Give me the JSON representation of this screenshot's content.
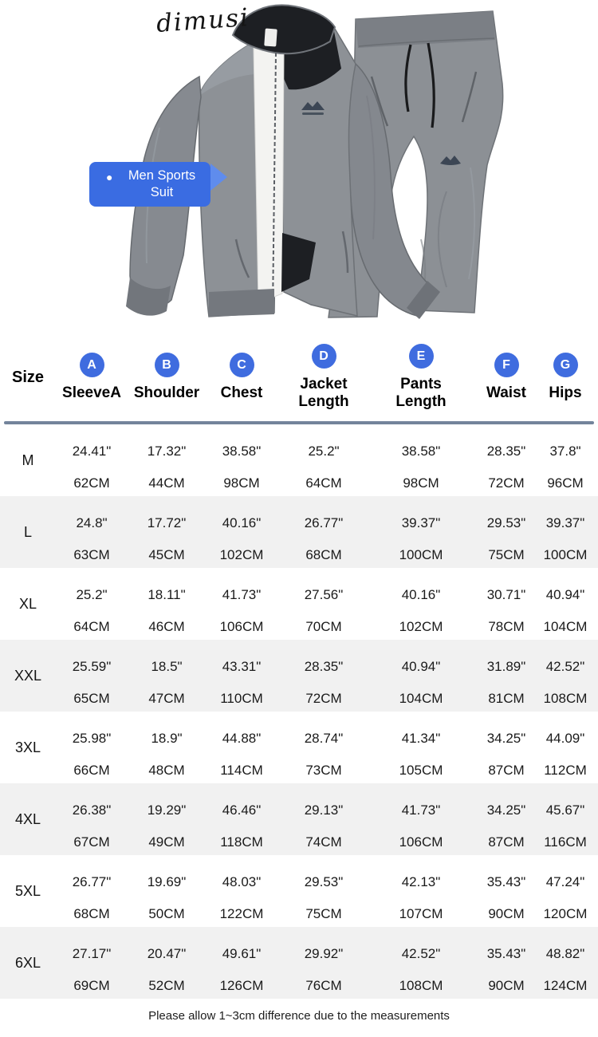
{
  "brand": "dimusi",
  "hero": {
    "callout": {
      "bullet": "●",
      "label": "Men Sports Suit"
    }
  },
  "colors": {
    "badge_blue": "#3f6cdf",
    "callout_blue": "#3a6ce2",
    "callout_arrow_blue": "#5f8ced",
    "header_rule": "#73849b",
    "row_alt_bg": "#f1f1f1",
    "jacket_gray": "#8d9196",
    "collar_black": "#1d1f23",
    "lining_white": "#f3f3f1"
  },
  "table": {
    "size_header": "Size",
    "columns": [
      {
        "badge": "A",
        "label": "SleeveA"
      },
      {
        "badge": "B",
        "label": "Shoulder"
      },
      {
        "badge": "C",
        "label": "Chest"
      },
      {
        "badge": "D",
        "label": "Jacket Length"
      },
      {
        "badge": "E",
        "label": "Pants Length"
      },
      {
        "badge": "F",
        "label": "Waist"
      },
      {
        "badge": "G",
        "label": "Hips"
      }
    ],
    "rows": [
      {
        "size": "M",
        "inch": [
          "24.41\"",
          "17.32\"",
          "38.58\"",
          "25.2\"",
          "38.58\"",
          "28.35\"",
          "37.8\""
        ],
        "cm": [
          "62CM",
          "44CM",
          "98CM",
          "64CM",
          "98CM",
          "72CM",
          "96CM"
        ]
      },
      {
        "size": "L",
        "inch": [
          "24.8\"",
          "17.72\"",
          "40.16\"",
          "26.77\"",
          "39.37\"",
          "29.53\"",
          "39.37\""
        ],
        "cm": [
          "63CM",
          "45CM",
          "102CM",
          "68CM",
          "100CM",
          "75CM",
          "100CM"
        ]
      },
      {
        "size": "XL",
        "inch": [
          "25.2\"",
          "18.11\"",
          "41.73\"",
          "27.56\"",
          "40.16\"",
          "30.71\"",
          "40.94\""
        ],
        "cm": [
          "64CM",
          "46CM",
          "106CM",
          "70CM",
          "102CM",
          "78CM",
          "104CM"
        ]
      },
      {
        "size": "XXL",
        "inch": [
          "25.59\"",
          "18.5\"",
          "43.31\"",
          "28.35\"",
          "40.94\"",
          "31.89\"",
          "42.52\""
        ],
        "cm": [
          "65CM",
          "47CM",
          "110CM",
          "72CM",
          "104CM",
          "81CM",
          "108CM"
        ]
      },
      {
        "size": "3XL",
        "inch": [
          "25.98\"",
          "18.9\"",
          "44.88\"",
          "28.74\"",
          "41.34\"",
          "34.25\"",
          "44.09\""
        ],
        "cm": [
          "66CM",
          "48CM",
          "114CM",
          "73CM",
          "105CM",
          "87CM",
          "112CM"
        ]
      },
      {
        "size": "4XL",
        "inch": [
          "26.38\"",
          "19.29\"",
          "46.46\"",
          "29.13\"",
          "41.73\"",
          "34.25\"",
          "45.67\""
        ],
        "cm": [
          "67CM",
          "49CM",
          "118CM",
          "74CM",
          "106CM",
          "87CM",
          "116CM"
        ]
      },
      {
        "size": "5XL",
        "inch": [
          "26.77\"",
          "19.69\"",
          "48.03\"",
          "29.53\"",
          "42.13\"",
          "35.43\"",
          "47.24\""
        ],
        "cm": [
          "68CM",
          "50CM",
          "122CM",
          "75CM",
          "107CM",
          "90CM",
          "120CM"
        ]
      },
      {
        "size": "6XL",
        "inch": [
          "27.17\"",
          "20.47\"",
          "49.61\"",
          "29.92\"",
          "42.52\"",
          "35.43\"",
          "48.82\""
        ],
        "cm": [
          "69CM",
          "52CM",
          "126CM",
          "76CM",
          "108CM",
          "90CM",
          "124CM"
        ]
      }
    ],
    "footnote": "Please allow 1~3cm difference due to the measurements"
  },
  "chart_data": {
    "type": "table",
    "title": "Men Sports Suit",
    "columns": [
      "Size",
      "SleeveA (A)",
      "Shoulder (B)",
      "Chest (C)",
      "Jacket Length (D)",
      "Pants Length (E)",
      "Waist (F)",
      "Hips (G)"
    ],
    "rows_inches": [
      [
        "M",
        24.41,
        17.32,
        38.58,
        25.2,
        38.58,
        28.35,
        37.8
      ],
      [
        "L",
        24.8,
        17.72,
        40.16,
        26.77,
        39.37,
        29.53,
        39.37
      ],
      [
        "XL",
        25.2,
        18.11,
        41.73,
        27.56,
        40.16,
        30.71,
        40.94
      ],
      [
        "XXL",
        25.59,
        18.5,
        43.31,
        28.35,
        40.94,
        31.89,
        42.52
      ],
      [
        "3XL",
        25.98,
        18.9,
        44.88,
        28.74,
        41.34,
        34.25,
        44.09
      ],
      [
        "4XL",
        26.38,
        19.29,
        46.46,
        29.13,
        41.73,
        34.25,
        45.67
      ],
      [
        "5XL",
        26.77,
        19.69,
        48.03,
        29.53,
        42.13,
        35.43,
        47.24
      ],
      [
        "6XL",
        27.17,
        20.47,
        49.61,
        29.92,
        42.52,
        35.43,
        48.82
      ]
    ],
    "rows_cm": [
      [
        "M",
        62,
        44,
        98,
        64,
        98,
        72,
        96
      ],
      [
        "L",
        63,
        45,
        102,
        68,
        100,
        75,
        100
      ],
      [
        "XL",
        64,
        46,
        106,
        70,
        102,
        78,
        104
      ],
      [
        "XXL",
        65,
        47,
        110,
        72,
        104,
        81,
        108
      ],
      [
        "3XL",
        66,
        48,
        114,
        73,
        105,
        87,
        112
      ],
      [
        "4XL",
        67,
        49,
        118,
        74,
        106,
        87,
        116
      ],
      [
        "5XL",
        68,
        50,
        122,
        75,
        107,
        90,
        120
      ],
      [
        "6XL",
        69,
        52,
        126,
        76,
        108,
        90,
        124
      ]
    ],
    "footnote": "Please allow 1~3cm difference due to the measurements"
  }
}
